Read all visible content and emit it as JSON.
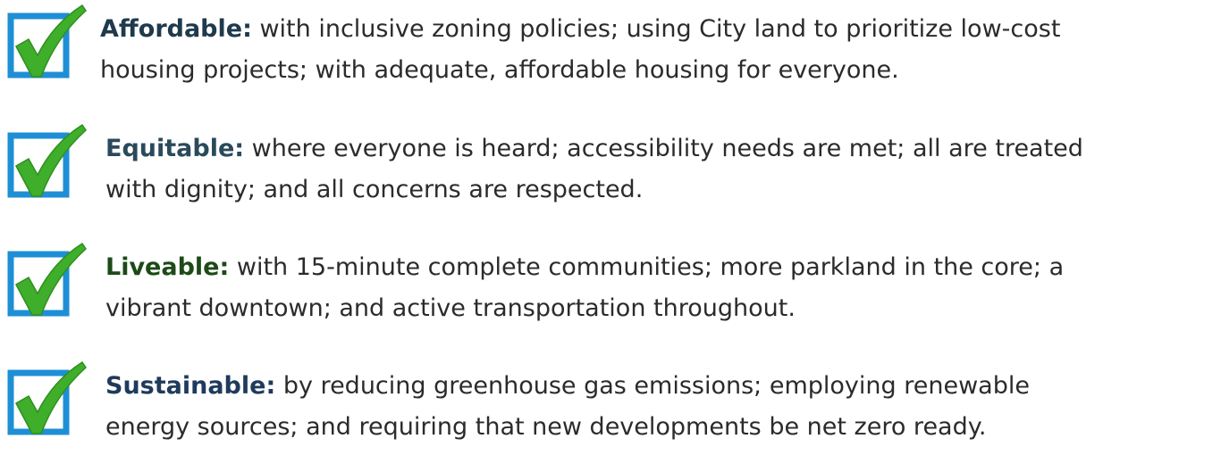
{
  "items": [
    {
      "term": "Affordable:",
      "term_color": "#1f3a4d",
      "line1": "with inclusive zoning policies; using City land to prioritize low-cost",
      "line2": "housing projects; with adequate, affordable housing for everyone."
    },
    {
      "term": "Equitable:",
      "term_color": "#2a4a5c",
      "line1": "where everyone is heard; accessibility needs are met; all are treated",
      "line2": "with dignity; and all concerns are respected."
    },
    {
      "term": "Liveable:",
      "term_color": "#1d4a17",
      "line1": "with 15-minute complete communities; more parkland in the core; a",
      "line2": "vibrant downtown; and active transportation throughout."
    },
    {
      "term": "Sustainable:",
      "term_color": "#1f3a5c",
      "line1": "by reducing greenhouse gas emissions; employing renewable",
      "line2": "energy sources; and requiring that new developments be net zero ready."
    }
  ]
}
